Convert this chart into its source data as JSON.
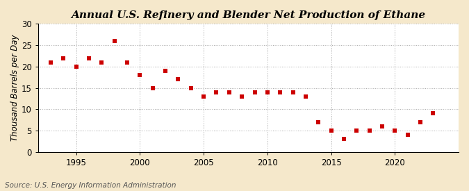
{
  "title": "Annual U.S. Refinery and Blender Net Production of Ethane",
  "ylabel": "Thousand Barrels per Day",
  "source": "Source: U.S. Energy Information Administration",
  "years": [
    1993,
    1994,
    1995,
    1996,
    1997,
    1998,
    1999,
    2000,
    2001,
    2002,
    2003,
    2004,
    2005,
    2006,
    2007,
    2008,
    2009,
    2010,
    2011,
    2012,
    2013,
    2014,
    2015,
    2016,
    2017,
    2018,
    2019,
    2020,
    2021,
    2022,
    2023
  ],
  "values": [
    21,
    22,
    20,
    22,
    21,
    26,
    21,
    18,
    15,
    19,
    17,
    15,
    13,
    14,
    14,
    13,
    14,
    14,
    14,
    14,
    13,
    7,
    5,
    3,
    5,
    5,
    6,
    5,
    4,
    7,
    9
  ],
  "marker_color": "#cc0000",
  "figure_background_color": "#f5e8cb",
  "plot_background_color": "#ffffff",
  "grid_color": "#aaaaaa",
  "xlim": [
    1992,
    2025
  ],
  "ylim": [
    0,
    30
  ],
  "yticks": [
    0,
    5,
    10,
    15,
    20,
    25,
    30
  ],
  "xticks": [
    1995,
    2000,
    2005,
    2010,
    2015,
    2020
  ],
  "title_fontsize": 11,
  "label_fontsize": 8.5,
  "source_fontsize": 7.5,
  "marker_size": 4
}
